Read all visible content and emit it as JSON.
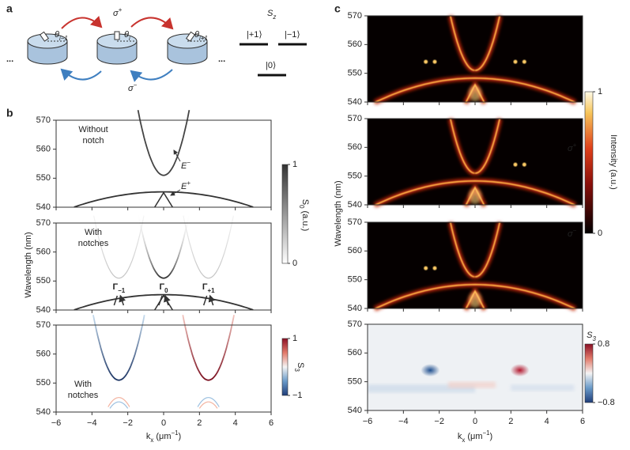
{
  "panel_a": {
    "label": "a",
    "ellipsis_left": "...",
    "ellipsis_right": "...",
    "sites": [
      {
        "symbol": "θ",
        "sub": "i−1"
      },
      {
        "symbol": "θ",
        "sub": "i"
      },
      {
        "symbol": "θ",
        "sub": "i+1"
      }
    ],
    "sigma_plus": {
      "symbol": "σ",
      "sup": "+"
    },
    "sigma_minus": {
      "symbol": "σ",
      "sup": "−"
    },
    "levels": {
      "title": {
        "symbol": "S",
        "sub": "z"
      },
      "states": [
        "|+1⟩",
        "|−1⟩",
        "|0⟩"
      ]
    }
  },
  "panel_b": {
    "label": "b",
    "y_label": "Wavelength (nm)",
    "x_label": {
      "symbol": "k",
      "sub": "x",
      "text": " (μm",
      "sup": "−1",
      "close": ")"
    },
    "xlim": [
      -6,
      6
    ],
    "ylim": [
      540,
      570
    ],
    "xticks": [
      {
        "value": -6,
        "label": "−6"
      },
      {
        "value": -4,
        "label": "−4"
      },
      {
        "value": -2,
        "label": "−2"
      },
      0,
      2,
      4,
      6
    ],
    "yticks": [
      540,
      550,
      560,
      570
    ],
    "plots": [
      {
        "annotation": [
          "Without",
          "notch"
        ],
        "curve_labels": [
          {
            "symbol": "E",
            "sup": "−"
          },
          {
            "symbol": "E",
            "sup": "+"
          }
        ]
      },
      {
        "annotation": [
          "With",
          "notches"
        ],
        "points": [
          {
            "symbol": "Γ",
            "sub": "−1"
          },
          {
            "symbol": "Γ",
            "sub": "0"
          },
          {
            "symbol": "Γ",
            "sub": "+1"
          }
        ]
      },
      {
        "annotation": [
          "With",
          "notches"
        ]
      }
    ],
    "colorbars": [
      {
        "label": {
          "symbol": "S",
          "sub": "0",
          "text": " (a.u.)"
        },
        "ticks": [
          0,
          1
        ]
      },
      {
        "label": {
          "symbol": "S",
          "sub": "3"
        },
        "ticks": [
          {
            "value": -1,
            "label": "−1"
          },
          1
        ]
      }
    ]
  },
  "panel_c": {
    "label": "c",
    "y_label": "Wavelength (nm)",
    "x_label": {
      "symbol": "k",
      "sub": "x",
      "text": " (μm",
      "sup": "−1",
      "close": ")"
    },
    "xlim": [
      -6,
      6
    ],
    "ylim": [
      540,
      570
    ],
    "xticks": [
      {
        "value": -6,
        "label": "−6"
      },
      {
        "value": -4,
        "label": "−4"
      },
      {
        "value": -2,
        "label": "−2"
      },
      0,
      2,
      4,
      6
    ],
    "yticks": [
      540,
      550,
      560,
      570
    ],
    "annotations": [
      {
        "symbol": "σ",
        "sup": "+"
      },
      {
        "symbol": "σ",
        "sup": "−"
      }
    ],
    "colorbars": [
      {
        "label": "Intensity (a.u.)",
        "ticks": [
          0,
          1
        ]
      },
      {
        "label": {
          "symbol": "S",
          "sub": "3"
        },
        "ticks": [
          {
            "value": -0.8,
            "label": "−0.8"
          },
          0.8
        ]
      }
    ]
  }
}
